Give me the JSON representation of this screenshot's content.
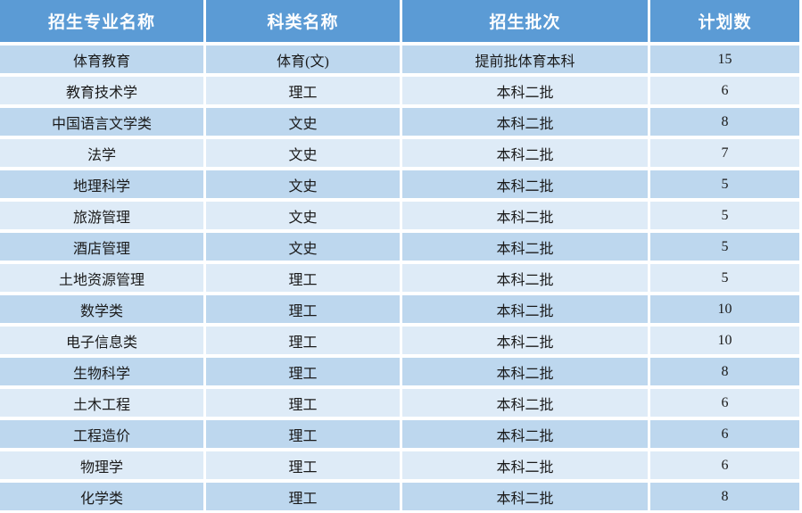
{
  "colors": {
    "header_bg": "#5b9bd5",
    "row_odd_bg": "#bdd7ee",
    "row_even_bg": "#deebf7",
    "header_text": "#ffffff",
    "body_text": "#1a1a1a",
    "separator": "#ffffff"
  },
  "table": {
    "headers": [
      "招生专业名称",
      "科类名称",
      "招生批次",
      "计划数"
    ],
    "rows": [
      [
        "体育教育",
        "体育(文)",
        "提前批体育本科",
        "15"
      ],
      [
        "教育技术学",
        "理工",
        "本科二批",
        "6"
      ],
      [
        "中国语言文学类",
        "文史",
        "本科二批",
        "8"
      ],
      [
        "法学",
        "文史",
        "本科二批",
        "7"
      ],
      [
        "地理科学",
        "文史",
        "本科二批",
        "5"
      ],
      [
        "旅游管理",
        "文史",
        "本科二批",
        "5"
      ],
      [
        "酒店管理",
        "文史",
        "本科二批",
        "5"
      ],
      [
        "土地资源管理",
        "理工",
        "本科二批",
        "5"
      ],
      [
        "数学类",
        "理工",
        "本科二批",
        "10"
      ],
      [
        "电子信息类",
        "理工",
        "本科二批",
        "10"
      ],
      [
        "生物科学",
        "理工",
        "本科二批",
        "8"
      ],
      [
        "土木工程",
        "理工",
        "本科二批",
        "6"
      ],
      [
        "工程造价",
        "理工",
        "本科二批",
        "6"
      ],
      [
        "物理学",
        "理工",
        "本科二批",
        "6"
      ],
      [
        "化学类",
        "理工",
        "本科二批",
        "8"
      ]
    ]
  }
}
